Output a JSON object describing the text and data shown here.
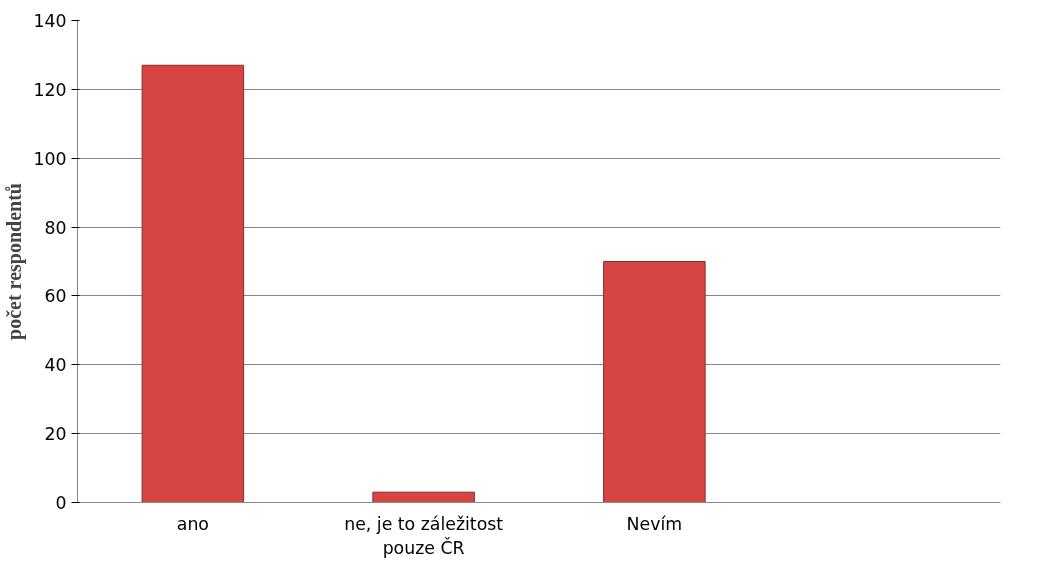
{
  "chart_data": {
    "type": "bar",
    "ylabel": "počet respondentů",
    "categories": [
      "ano",
      "ne, je to záležitost\npouze ČR",
      "Nevím",
      null
    ],
    "values": [
      127,
      3,
      70,
      null
    ],
    "color": "#d64541",
    "ylim": [
      0,
      140
    ],
    "yticks": [
      0,
      20,
      40,
      60,
      80,
      100,
      120,
      140
    ],
    "grid": "y"
  }
}
